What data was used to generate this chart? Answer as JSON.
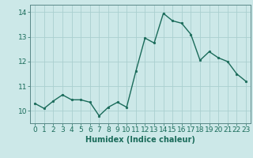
{
  "x": [
    0,
    1,
    2,
    3,
    4,
    5,
    6,
    7,
    8,
    9,
    10,
    11,
    12,
    13,
    14,
    15,
    16,
    17,
    18,
    19,
    20,
    21,
    22,
    23
  ],
  "y": [
    10.3,
    10.1,
    10.4,
    10.65,
    10.45,
    10.45,
    10.35,
    9.8,
    10.15,
    10.35,
    10.15,
    11.6,
    12.95,
    12.75,
    13.95,
    13.65,
    13.55,
    13.1,
    12.05,
    12.4,
    12.15,
    12.0,
    11.5,
    11.2
  ],
  "line_color": "#1a6b5a",
  "marker": "o",
  "marker_size": 1.8,
  "line_width": 1.0,
  "bg_color": "#cce8e8",
  "grid_color": "#aacfcf",
  "xlabel": "Humidex (Indice chaleur)",
  "xlabel_fontsize": 7,
  "tick_fontsize": 6.5,
  "ylim": [
    9.5,
    14.3
  ],
  "yticks": [
    10,
    11,
    12,
    13,
    14
  ],
  "xticks": [
    0,
    1,
    2,
    3,
    4,
    5,
    6,
    7,
    8,
    9,
    10,
    11,
    12,
    13,
    14,
    15,
    16,
    17,
    18,
    19,
    20,
    21,
    22,
    23
  ],
  "spine_color": "#5a8888"
}
